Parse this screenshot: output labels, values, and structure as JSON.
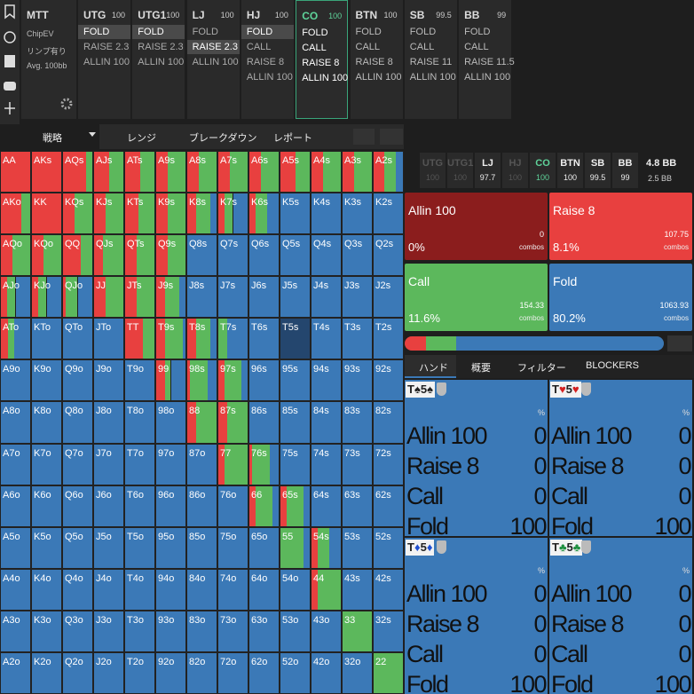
{
  "sidebar": {
    "game": "MTT",
    "options": [
      "ChipEV",
      "リンプ有り",
      "Avg. 100bb"
    ]
  },
  "positions": [
    {
      "name": "UTG",
      "stack": 100,
      "actions": [
        "FOLD",
        "RAISE 2.3",
        "ALLIN 100"
      ],
      "selected": 0
    },
    {
      "name": "UTG1",
      "stack": 100,
      "actions": [
        "FOLD",
        "RAISE 2.3",
        "ALLIN 100"
      ],
      "selected": 0
    },
    {
      "name": "LJ",
      "stack": 100,
      "actions": [
        "FOLD",
        "RAISE 2.3",
        "ALLIN 100"
      ],
      "selected": 1
    },
    {
      "name": "HJ",
      "stack": 100,
      "actions": [
        "FOLD",
        "CALL",
        "RAISE 8",
        "ALLIN 100"
      ],
      "selected": 0
    },
    {
      "name": "CO",
      "stack": 100,
      "actions": [
        "FOLD",
        "CALL",
        "RAISE 8",
        "ALLIN 100"
      ],
      "active": true
    },
    {
      "name": "BTN",
      "stack": 100,
      "actions": [
        "FOLD",
        "CALL",
        "RAISE 8",
        "ALLIN 100"
      ]
    },
    {
      "name": "SB",
      "stack": 99.5,
      "actions": [
        "FOLD",
        "CALL",
        "RAISE 11",
        "ALLIN 100"
      ]
    },
    {
      "name": "BB",
      "stack": 99,
      "actions": [
        "FOLD",
        "CALL",
        "RAISE 11.5",
        "ALLIN 100"
      ]
    }
  ],
  "tabs": [
    "戦略",
    "レンジ",
    "ブレークダウン",
    "レポート"
  ],
  "grid": {
    "colors": {
      "raise": "#e8403f",
      "call": "#5cb85c",
      "fold": "#3b79b7"
    },
    "highlight": [
      4,
      9
    ],
    "hands": [
      [
        "AA",
        "AKs",
        "AQs",
        "AJs",
        "ATs",
        "A9s",
        "A8s",
        "A7s",
        "A6s",
        "A5s",
        "A4s",
        "A3s",
        "A2s"
      ],
      [
        "AKo",
        "KK",
        "KQs",
        "KJs",
        "KTs",
        "K9s",
        "K8s",
        "K7s",
        "K6s",
        "K5s",
        "K4s",
        "K3s",
        "K2s"
      ],
      [
        "AQo",
        "KQo",
        "QQ",
        "QJs",
        "QTs",
        "Q9s",
        "Q8s",
        "Q7s",
        "Q6s",
        "Q5s",
        "Q4s",
        "Q3s",
        "Q2s"
      ],
      [
        "AJo",
        "KJo",
        "QJo",
        "JJ",
        "JTs",
        "J9s",
        "J8s",
        "J7s",
        "J6s",
        "J5s",
        "J4s",
        "J3s",
        "J2s"
      ],
      [
        "ATo",
        "KTo",
        "QTo",
        "JTo",
        "TT",
        "T9s",
        "T8s",
        "T7s",
        "T6s",
        "T5s",
        "T4s",
        "T3s",
        "T2s"
      ],
      [
        "A9o",
        "K9o",
        "Q9o",
        "J9o",
        "T9o",
        "99",
        "98s",
        "97s",
        "96s",
        "95s",
        "94s",
        "93s",
        "92s"
      ],
      [
        "A8o",
        "K8o",
        "Q8o",
        "J8o",
        "T8o",
        "98o",
        "88",
        "87s",
        "86s",
        "85s",
        "84s",
        "83s",
        "82s"
      ],
      [
        "A7o",
        "K7o",
        "Q7o",
        "J7o",
        "T7o",
        "97o",
        "87o",
        "77",
        "76s",
        "75s",
        "74s",
        "73s",
        "72s"
      ],
      [
        "A6o",
        "K6o",
        "Q6o",
        "J6o",
        "T6o",
        "96o",
        "86o",
        "76o",
        "66",
        "65s",
        "64s",
        "63s",
        "62s"
      ],
      [
        "A5o",
        "K5o",
        "Q5o",
        "J5o",
        "T5o",
        "95o",
        "85o",
        "75o",
        "65o",
        "55",
        "54s",
        "53s",
        "52s"
      ],
      [
        "A4o",
        "K4o",
        "Q4o",
        "J4o",
        "T4o",
        "94o",
        "84o",
        "74o",
        "64o",
        "54o",
        "44",
        "43s",
        "42s"
      ],
      [
        "A3o",
        "K3o",
        "Q3o",
        "J3o",
        "T3o",
        "93o",
        "83o",
        "73o",
        "63o",
        "53o",
        "43o",
        "33",
        "32s"
      ],
      [
        "A2o",
        "K2o",
        "Q2o",
        "J2o",
        "T2o",
        "92o",
        "82o",
        "72o",
        "62o",
        "52o",
        "42o",
        "32o",
        "22"
      ]
    ],
    "strategy": [
      [
        [
          100,
          0,
          0
        ],
        [
          100,
          0,
          0
        ],
        [
          80,
          20,
          0
        ],
        [
          50,
          50,
          0
        ],
        [
          50,
          50,
          0
        ],
        [
          40,
          60,
          0
        ],
        [
          40,
          60,
          0
        ],
        [
          40,
          60,
          0
        ],
        [
          40,
          60,
          0
        ],
        [
          50,
          50,
          0
        ],
        [
          40,
          60,
          0
        ],
        [
          40,
          60,
          0
        ],
        [
          35,
          40,
          25
        ]
      ],
      [
        [
          70,
          30,
          0
        ],
        [
          100,
          0,
          0
        ],
        [
          40,
          60,
          0
        ],
        [
          40,
          60,
          0
        ],
        [
          45,
          55,
          0
        ],
        [
          40,
          60,
          0
        ],
        [
          30,
          50,
          20
        ],
        [
          20,
          30,
          50
        ],
        [
          20,
          40,
          40
        ],
        [
          0,
          0,
          100
        ],
        [
          0,
          0,
          100
        ],
        [
          0,
          0,
          100
        ],
        [
          0,
          0,
          100
        ]
      ],
      [
        [
          40,
          60,
          0
        ],
        [
          40,
          60,
          0
        ],
        [
          60,
          40,
          0
        ],
        [
          30,
          70,
          0
        ],
        [
          40,
          60,
          0
        ],
        [
          40,
          60,
          0
        ],
        [
          0,
          0,
          100
        ],
        [
          0,
          0,
          100
        ],
        [
          0,
          0,
          100
        ],
        [
          0,
          0,
          100
        ],
        [
          0,
          0,
          100
        ],
        [
          0,
          0,
          100
        ],
        [
          0,
          0,
          100
        ]
      ],
      [
        [
          20,
          30,
          50
        ],
        [
          20,
          30,
          50
        ],
        [
          10,
          40,
          50
        ],
        [
          40,
          60,
          0
        ],
        [
          40,
          60,
          0
        ],
        [
          30,
          50,
          20
        ],
        [
          0,
          0,
          100
        ],
        [
          0,
          0,
          100
        ],
        [
          0,
          0,
          100
        ],
        [
          0,
          0,
          100
        ],
        [
          0,
          0,
          100
        ],
        [
          0,
          0,
          100
        ],
        [
          0,
          0,
          100
        ]
      ],
      [
        [
          25,
          20,
          55
        ],
        [
          0,
          0,
          100
        ],
        [
          0,
          0,
          100
        ],
        [
          0,
          0,
          100
        ],
        [
          60,
          40,
          0
        ],
        [
          30,
          60,
          10
        ],
        [
          30,
          50,
          20
        ],
        [
          0,
          30,
          70
        ],
        [
          0,
          0,
          100
        ],
        [
          0,
          0,
          100
        ],
        [
          0,
          0,
          100
        ],
        [
          0,
          0,
          100
        ],
        [
          0,
          0,
          100
        ]
      ],
      [
        [
          0,
          0,
          100
        ],
        [
          0,
          0,
          100
        ],
        [
          0,
          0,
          100
        ],
        [
          0,
          0,
          100
        ],
        [
          0,
          0,
          100
        ],
        [
          30,
          20,
          50
        ],
        [
          10,
          60,
          30
        ],
        [
          20,
          60,
          20
        ],
        [
          0,
          0,
          100
        ],
        [
          0,
          0,
          100
        ],
        [
          0,
          0,
          100
        ],
        [
          0,
          0,
          100
        ],
        [
          0,
          0,
          100
        ]
      ],
      [
        [
          0,
          0,
          100
        ],
        [
          0,
          0,
          100
        ],
        [
          0,
          0,
          100
        ],
        [
          0,
          0,
          100
        ],
        [
          0,
          0,
          100
        ],
        [
          0,
          0,
          100
        ],
        [
          30,
          70,
          0
        ],
        [
          30,
          70,
          0
        ],
        [
          0,
          0,
          100
        ],
        [
          0,
          0,
          100
        ],
        [
          0,
          0,
          100
        ],
        [
          0,
          0,
          100
        ],
        [
          0,
          0,
          100
        ]
      ],
      [
        [
          0,
          0,
          100
        ],
        [
          0,
          0,
          100
        ],
        [
          0,
          0,
          100
        ],
        [
          0,
          0,
          100
        ],
        [
          0,
          0,
          100
        ],
        [
          0,
          0,
          100
        ],
        [
          0,
          0,
          100
        ],
        [
          20,
          80,
          0
        ],
        [
          10,
          60,
          30
        ],
        [
          0,
          0,
          100
        ],
        [
          0,
          0,
          100
        ],
        [
          0,
          0,
          100
        ],
        [
          0,
          0,
          100
        ]
      ],
      [
        [
          0,
          0,
          100
        ],
        [
          0,
          0,
          100
        ],
        [
          0,
          0,
          100
        ],
        [
          0,
          0,
          100
        ],
        [
          0,
          0,
          100
        ],
        [
          0,
          0,
          100
        ],
        [
          0,
          0,
          100
        ],
        [
          0,
          0,
          100
        ],
        [
          20,
          60,
          20
        ],
        [
          20,
          60,
          20
        ],
        [
          0,
          0,
          100
        ],
        [
          0,
          0,
          100
        ],
        [
          0,
          0,
          100
        ]
      ],
      [
        [
          0,
          0,
          100
        ],
        [
          0,
          0,
          100
        ],
        [
          0,
          0,
          100
        ],
        [
          0,
          0,
          100
        ],
        [
          0,
          0,
          100
        ],
        [
          0,
          0,
          100
        ],
        [
          0,
          0,
          100
        ],
        [
          0,
          0,
          100
        ],
        [
          0,
          0,
          100
        ],
        [
          0,
          80,
          20
        ],
        [
          20,
          40,
          40
        ],
        [
          0,
          0,
          100
        ],
        [
          0,
          0,
          100
        ]
      ],
      [
        [
          0,
          0,
          100
        ],
        [
          0,
          0,
          100
        ],
        [
          0,
          0,
          100
        ],
        [
          0,
          0,
          100
        ],
        [
          0,
          0,
          100
        ],
        [
          0,
          0,
          100
        ],
        [
          0,
          0,
          100
        ],
        [
          0,
          0,
          100
        ],
        [
          0,
          0,
          100
        ],
        [
          0,
          0,
          100
        ],
        [
          20,
          80,
          0
        ],
        [
          0,
          0,
          100
        ],
        [
          0,
          0,
          100
        ]
      ],
      [
        [
          0,
          0,
          100
        ],
        [
          0,
          0,
          100
        ],
        [
          0,
          0,
          100
        ],
        [
          0,
          0,
          100
        ],
        [
          0,
          0,
          100
        ],
        [
          0,
          0,
          100
        ],
        [
          0,
          0,
          100
        ],
        [
          0,
          0,
          100
        ],
        [
          0,
          0,
          100
        ],
        [
          0,
          0,
          100
        ],
        [
          0,
          0,
          100
        ],
        [
          0,
          100,
          0
        ],
        [
          0,
          0,
          100
        ]
      ],
      [
        [
          0,
          0,
          100
        ],
        [
          0,
          0,
          100
        ],
        [
          0,
          0,
          100
        ],
        [
          0,
          0,
          100
        ],
        [
          0,
          0,
          100
        ],
        [
          0,
          0,
          100
        ],
        [
          0,
          0,
          100
        ],
        [
          0,
          0,
          100
        ],
        [
          0,
          0,
          100
        ],
        [
          0,
          0,
          100
        ],
        [
          0,
          0,
          100
        ],
        [
          0,
          0,
          100
        ],
        [
          0,
          100,
          0
        ]
      ]
    ]
  },
  "summary": {
    "positions": [
      {
        "name": "UTG",
        "stack": 100,
        "dim": true
      },
      {
        "name": "UTG1",
        "stack": 100,
        "dim": true
      },
      {
        "name": "LJ",
        "stack": 97.7
      },
      {
        "name": "HJ",
        "stack": 100,
        "dim": true
      },
      {
        "name": "CO",
        "stack": 100,
        "active": true
      },
      {
        "name": "BTN",
        "stack": 100
      },
      {
        "name": "SB",
        "stack": 99.5
      },
      {
        "name": "BB",
        "stack": 99
      }
    ],
    "pot": "4.8 BB",
    "to_call": "2.5 BB"
  },
  "actions": [
    {
      "name": "Allin 100",
      "combos": 0,
      "unit": "combos",
      "share": {
        "value": 0,
        "label": "0%"
      },
      "color": "#8b1d1d"
    },
    {
      "name": "Raise 8",
      "combos": 107.75,
      "unit": "combos",
      "share": {
        "value": 8.1,
        "label": "8.1%"
      },
      "color": "#e8403f"
    },
    {
      "name": "Call",
      "combos": 154.33,
      "unit": "combos",
      "share": {
        "value": 11.6,
        "label": "11.6%"
      },
      "color": "#5cb85c"
    },
    {
      "name": "Fold",
      "combos": 1063.93,
      "unit": "combos",
      "share": {
        "value": 80.2,
        "label": "80.2%"
      },
      "color": "#3b79b7"
    }
  ],
  "hand_tabs": [
    "ハンド",
    "概要",
    "フィルター",
    "BLOCKERS"
  ],
  "hand_cards": [
    {
      "cards": [
        {
          "rank": "T",
          "suit": "♠"
        },
        {
          "rank": "5",
          "suit": "♠"
        }
      ],
      "suit_color": "#222",
      "unit": "%",
      "rows": [
        {
          "name": "Allin 100",
          "value": 0
        },
        {
          "name": "Raise 8",
          "value": 0
        },
        {
          "name": "Call",
          "value": 0
        },
        {
          "name": "Fold",
          "value": 100
        }
      ]
    },
    {
      "cards": [
        {
          "rank": "T",
          "suit": "♥"
        },
        {
          "rank": "5",
          "suit": "♥"
        }
      ],
      "suit_color": "#d42020",
      "unit": "%",
      "rows": [
        {
          "name": "Allin 100",
          "value": 0
        },
        {
          "name": "Raise 8",
          "value": 0
        },
        {
          "name": "Call",
          "value": 0
        },
        {
          "name": "Fold",
          "value": 100
        }
      ]
    },
    {
      "cards": [
        {
          "rank": "T",
          "suit": "♦"
        },
        {
          "rank": "5",
          "suit": "♦"
        }
      ],
      "suit_color": "#2050d0",
      "unit": "%",
      "rows": [
        {
          "name": "Allin 100",
          "value": 0
        },
        {
          "name": "Raise 8",
          "value": 0
        },
        {
          "name": "Call",
          "value": 0
        },
        {
          "name": "Fold",
          "value": 100
        }
      ]
    },
    {
      "cards": [
        {
          "rank": "T",
          "suit": "♣"
        },
        {
          "rank": "5",
          "suit": "♣"
        }
      ],
      "suit_color": "#209040",
      "unit": "%",
      "rows": [
        {
          "name": "Allin 100",
          "value": 0
        },
        {
          "name": "Raise 8",
          "value": 0
        },
        {
          "name": "Call",
          "value": 0
        },
        {
          "name": "Fold",
          "value": 100
        }
      ]
    }
  ]
}
